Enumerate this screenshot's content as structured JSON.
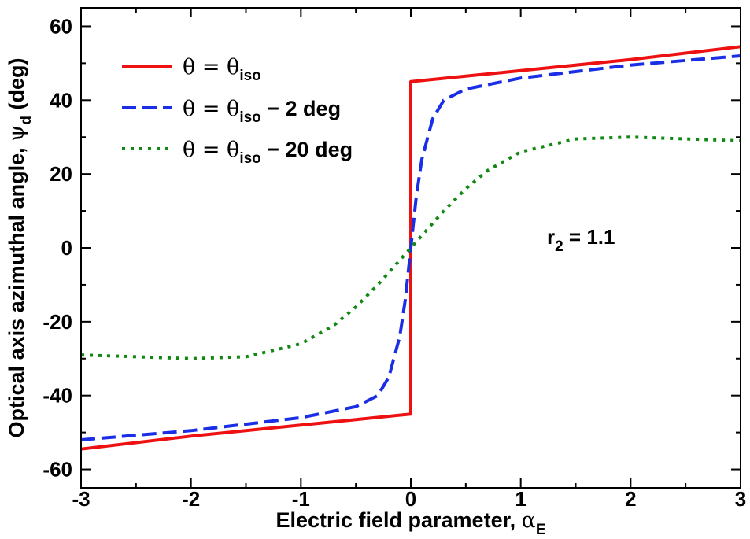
{
  "chart_data": {
    "type": "line",
    "xlabel": "Electric field parameter, ",
    "xlabel_symbol": "α",
    "xlabel_sub": "E",
    "ylabel": "Optical axis azimuthal angle, ",
    "ylabel_symbol": "ψ",
    "ylabel_sub": "d",
    "ylabel_unit": " (deg)",
    "xlim": [
      -3,
      3
    ],
    "ylim": [
      -65,
      65
    ],
    "xticks": [
      "-3",
      "-2",
      "-1",
      "0",
      "1",
      "2",
      "3"
    ],
    "yticks": [
      "-60",
      "-40",
      "-20",
      "0",
      "20",
      "40",
      "60"
    ],
    "annotation": {
      "text": "r",
      "sub": "2",
      "rest": " = 1.1"
    },
    "series": [
      {
        "name": "θ = θiso",
        "legend": {
          "pre": "θ = θ",
          "sub": "iso",
          "post": ""
        },
        "color": "#ee1111",
        "style": "solid",
        "x": [
          -3,
          -2,
          -1,
          -0.5,
          0,
          0,
          0.5,
          1,
          2,
          3
        ],
        "y": [
          -54.5,
          -51,
          -48,
          -46.5,
          -45,
          45,
          46.5,
          48,
          51,
          54.5
        ]
      },
      {
        "name": "θ = θiso − 2 deg",
        "legend": {
          "pre": "θ = θ",
          "sub": "iso",
          "post": " − 2 deg"
        },
        "color": "#1a2ee6",
        "style": "dashed",
        "x": [
          -3,
          -2,
          -1,
          -0.5,
          -0.3,
          -0.2,
          -0.1,
          -0.05,
          0,
          0.05,
          0.1,
          0.2,
          0.3,
          0.5,
          1,
          2,
          3
        ],
        "y": [
          -52,
          -49.5,
          -46,
          -43,
          -40,
          -35,
          -24,
          -14,
          0,
          14,
          24,
          35,
          40,
          43,
          46,
          49.5,
          52
        ]
      },
      {
        "name": "θ = θiso − 20 deg",
        "legend": {
          "pre": "θ =  θ",
          "sub": "iso",
          "post": " − 20 deg"
        },
        "color": "#118811",
        "style": "dotted",
        "x": [
          -3,
          -2.5,
          -2,
          -1.5,
          -1,
          -0.7,
          -0.5,
          -0.3,
          0,
          0.3,
          0.5,
          0.7,
          1,
          1.5,
          2,
          2.5,
          3
        ],
        "y": [
          -29,
          -29.5,
          -30,
          -29.5,
          -26,
          -21,
          -16,
          -10,
          0,
          10,
          16,
          21,
          26,
          29.5,
          30,
          29.5,
          29
        ]
      }
    ]
  }
}
